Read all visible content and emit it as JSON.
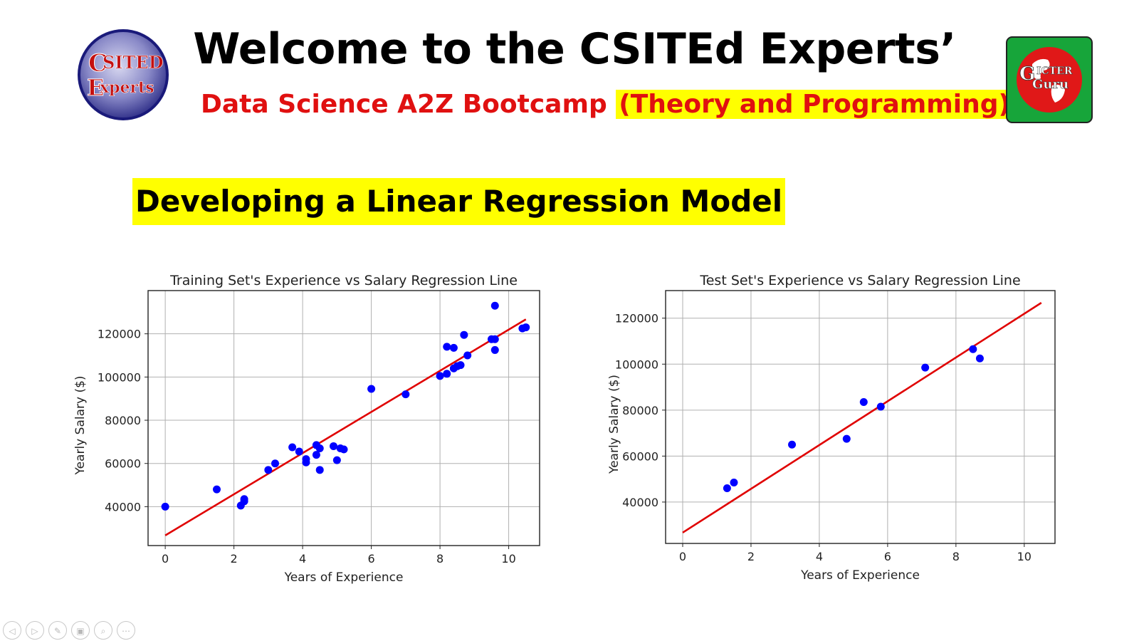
{
  "header": {
    "title": "Welcome to the CSITEd Experts’",
    "subtitle_main": "Data Science A2Z Bootcamp",
    "subtitle_highlight": "(Theory and Programming)",
    "logo_left_text_1": "SITED",
    "logo_left_text_2": "xperts",
    "logo_right_text_1": "ICTER",
    "logo_right_text_2": "Guru"
  },
  "section": {
    "heading": "Developing a Linear Regression Model"
  },
  "colors": {
    "points": "#0000ff",
    "line": "#e00000",
    "title_red": "#e01010",
    "highlight": "#ffff00"
  },
  "nav": [
    "◁",
    "▷",
    "✎",
    "▣",
    "⌕",
    "⋯"
  ],
  "chart_data": [
    {
      "type": "scatter",
      "title": "Training Set's Experience vs Salary Regression Line",
      "xlabel": "Years of Experience",
      "ylabel": "Yearly Salary ($)",
      "xlim": [
        -0.5,
        10.9
      ],
      "ylim": [
        22000,
        140000
      ],
      "xticks": [
        0,
        2,
        4,
        6,
        8,
        10
      ],
      "yticks": [
        40000,
        60000,
        80000,
        100000,
        120000
      ],
      "grid": true,
      "series": [
        {
          "kind": "points",
          "x": [
            0,
            1.5,
            2.2,
            2.3,
            2.3,
            3.0,
            3.2,
            3.7,
            3.9,
            4.1,
            4.1,
            4.4,
            4.4,
            4.5,
            4.5,
            4.9,
            5.0,
            5.1,
            5.2,
            6.0,
            7.0,
            8.0,
            8.2,
            8.2,
            8.4,
            8.4,
            8.5,
            8.6,
            8.7,
            8.8,
            9.5,
            9.6,
            9.6,
            9.6,
            10.4,
            10.5
          ],
          "y": [
            40000,
            48000,
            40500,
            42500,
            43500,
            57000,
            60000,
            67500,
            65500,
            62000,
            60500,
            68500,
            64000,
            57000,
            67000,
            68000,
            61500,
            67000,
            66500,
            94500,
            92000,
            100500,
            101500,
            114000,
            113500,
            104000,
            105000,
            105500,
            119500,
            110000,
            117500,
            133000,
            117500,
            112500,
            122500,
            123000
          ]
        },
        {
          "kind": "line",
          "x": [
            0,
            10.5
          ],
          "y": [
            26700,
            126700
          ]
        }
      ]
    },
    {
      "type": "scatter",
      "title": "Test Set's Experience vs Salary Regression Line",
      "xlabel": "Years of Experience",
      "ylabel": "Yearly Salary ($)",
      "xlim": [
        -0.5,
        10.9
      ],
      "ylim": [
        22000,
        132000
      ],
      "xticks": [
        0,
        2,
        4,
        6,
        8,
        10
      ],
      "yticks": [
        40000,
        60000,
        80000,
        100000,
        120000
      ],
      "grid": true,
      "series": [
        {
          "kind": "points",
          "x": [
            1.3,
            1.5,
            3.2,
            4.8,
            5.3,
            5.8,
            7.1,
            8.5,
            8.7
          ],
          "y": [
            46000,
            48500,
            65000,
            67500,
            83500,
            81500,
            98500,
            106500,
            102500
          ]
        },
        {
          "kind": "line",
          "x": [
            0,
            10.5
          ],
          "y": [
            26700,
            126700
          ]
        }
      ]
    }
  ]
}
